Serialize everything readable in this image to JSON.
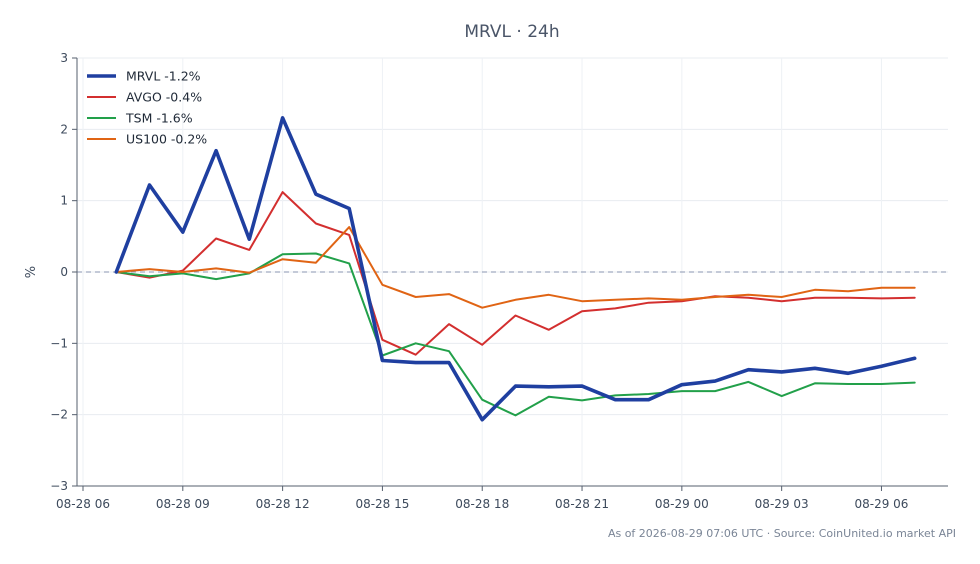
{
  "chart_data": {
    "type": "line",
    "title": "MRVL · 24h",
    "ylabel": "%",
    "xlabel": "",
    "x": [
      "08-28 07",
      "08-28 08",
      "08-28 09",
      "08-28 10",
      "08-28 11",
      "08-28 12",
      "08-28 13",
      "08-28 14",
      "08-28 15",
      "08-28 16",
      "08-28 17",
      "08-28 18",
      "08-28 19",
      "08-28 20",
      "08-28 21",
      "08-28 22",
      "08-28 23",
      "08-29 00",
      "08-29 01",
      "08-29 02",
      "08-29 03",
      "08-29 04",
      "08-29 05",
      "08-29 06",
      "08-29 07"
    ],
    "x_ticks": [
      "08-28 06",
      "08-28 09",
      "08-28 12",
      "08-28 15",
      "08-28 18",
      "08-28 21",
      "08-29 00",
      "08-29 03",
      "08-29 06"
    ],
    "xlim": [
      "08-28 06",
      "08-29 08"
    ],
    "ylim": [
      -3,
      3
    ],
    "y_ticks": [
      "−3",
      "−2",
      "−1",
      "0",
      "1",
      "2",
      "3"
    ],
    "y_tick_values": [
      -3,
      -2,
      -1,
      0,
      1,
      2,
      3
    ],
    "reference_line": 0,
    "grid": true,
    "legend_position": "top-left",
    "series": [
      {
        "name": "MRVL -1.2%",
        "color": "#1f3fa0",
        "emphasis": true,
        "values": [
          0,
          1.22,
          0.56,
          1.7,
          0.46,
          2.16,
          1.09,
          0.89,
          -1.24,
          -1.27,
          -1.27,
          -2.07,
          -1.6,
          -1.61,
          -1.6,
          -1.79,
          -1.79,
          -1.58,
          -1.53,
          -1.37,
          -1.4,
          -1.35,
          -1.42,
          -1.32,
          -1.21
        ]
      },
      {
        "name": "AVGO -0.4%",
        "color": "#d32f2f",
        "emphasis": false,
        "values": [
          0,
          -0.08,
          0.02,
          0.47,
          0.31,
          1.12,
          0.68,
          0.52,
          -0.95,
          -1.16,
          -0.73,
          -1.02,
          -0.61,
          -0.81,
          -0.55,
          -0.51,
          -0.43,
          -0.41,
          -0.34,
          -0.36,
          -0.41,
          -0.36,
          -0.36,
          -0.37,
          -0.36
        ]
      },
      {
        "name": "TSM -1.6%",
        "color": "#22a04a",
        "emphasis": false,
        "values": [
          0,
          -0.06,
          -0.02,
          -0.1,
          -0.02,
          0.25,
          0.26,
          0.12,
          -1.17,
          -1.0,
          -1.11,
          -1.79,
          -2.01,
          -1.75,
          -1.8,
          -1.73,
          -1.71,
          -1.67,
          -1.67,
          -1.54,
          -1.74,
          -1.56,
          -1.57,
          -1.57,
          -1.55
        ]
      },
      {
        "name": "US100 -0.2%",
        "color": "#e06414",
        "emphasis": false,
        "values": [
          0,
          0.04,
          0.0,
          0.05,
          -0.01,
          0.18,
          0.13,
          0.63,
          -0.18,
          -0.35,
          -0.31,
          -0.5,
          -0.39,
          -0.32,
          -0.41,
          -0.39,
          -0.37,
          -0.39,
          -0.35,
          -0.32,
          -0.35,
          -0.25,
          -0.27,
          -0.22,
          -0.22
        ]
      }
    ]
  },
  "footer": "As of 2026-08-29 07:06 UTC · Source: CoinUnited.io market API"
}
